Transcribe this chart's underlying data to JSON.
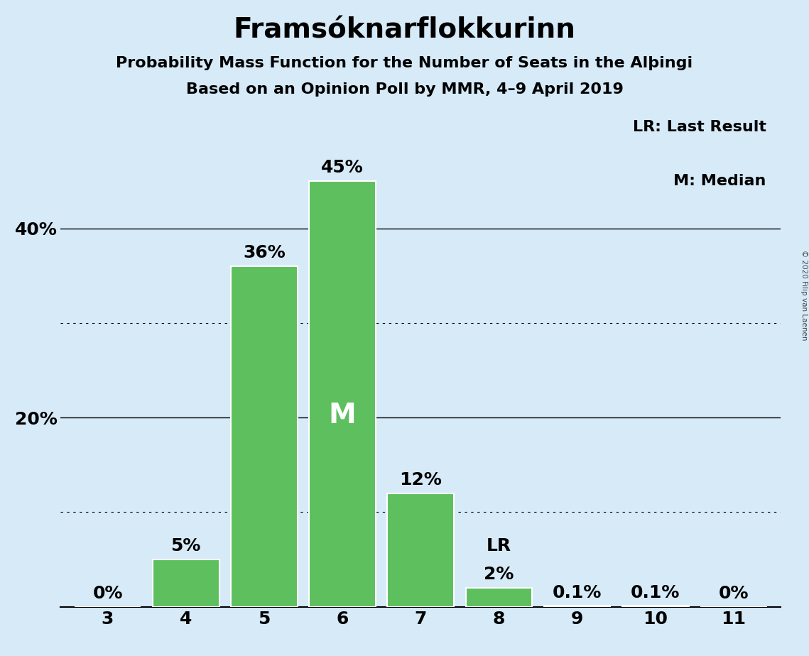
{
  "title": "Framsóknarflokkurinn",
  "subtitle1": "Probability Mass Function for the Number of Seats in the Alþingi",
  "subtitle2": "Based on an Opinion Poll by MMR, 4–9 April 2019",
  "copyright": "© 2020 Filip van Laenen",
  "categories": [
    3,
    4,
    5,
    6,
    7,
    8,
    9,
    10,
    11
  ],
  "values": [
    0.0,
    5.0,
    36.0,
    45.0,
    12.0,
    2.0,
    0.1,
    0.1,
    0.0
  ],
  "bar_labels": [
    "0%",
    "5%",
    "36%",
    "45%",
    "12%",
    "2%",
    "0.1%",
    "0.1%",
    "0%"
  ],
  "bar_color": "#5dbf5d",
  "background_color": "#d6eaf8",
  "median_bar": 6,
  "last_result_bar": 8,
  "median_label": "M",
  "lr_label": "LR",
  "legend_lr": "LR: Last Result",
  "legend_m": "M: Median",
  "yticks_solid": [
    20,
    40
  ],
  "yticks_dotted": [
    10,
    30
  ],
  "ytick_positions": [
    20,
    40
  ],
  "ytick_labels_left": [
    "20%",
    "40%"
  ],
  "ylim": [
    0,
    52
  ],
  "title_fontsize": 28,
  "subtitle_fontsize": 16,
  "bar_label_fontsize": 18,
  "axis_tick_fontsize": 18,
  "legend_fontsize": 16,
  "median_label_fontsize": 28,
  "lr_label_fontsize": 18
}
